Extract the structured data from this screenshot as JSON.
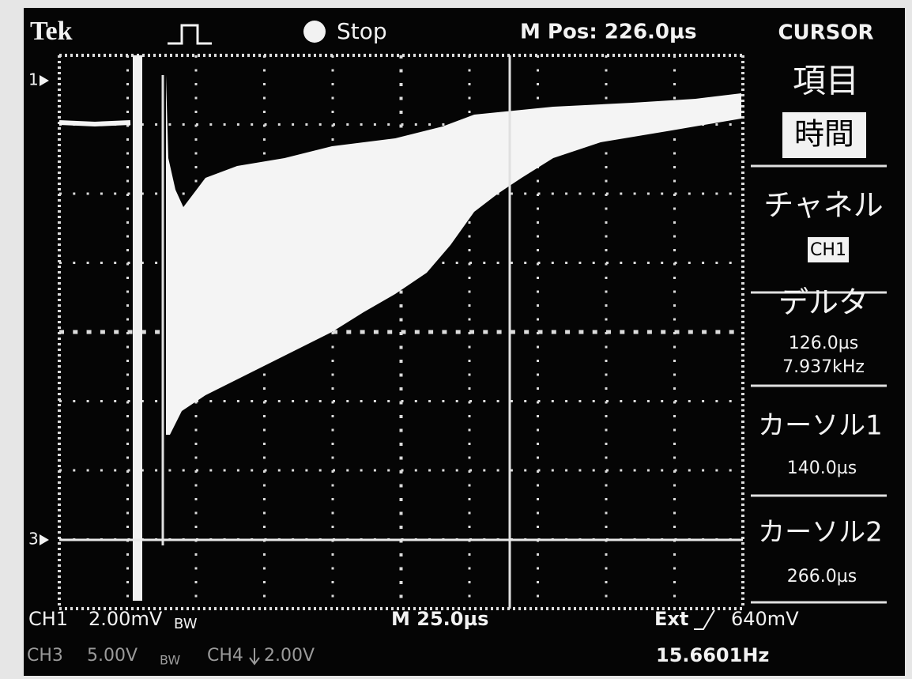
{
  "header": {
    "brand": "Tek",
    "status": "Stop",
    "position": "M Pos: 226.0µs"
  },
  "menu": {
    "title": "CURSOR",
    "items": [
      {
        "label": "項目",
        "value": "時間"
      },
      {
        "label": "チャネル",
        "value": "CH1"
      },
      {
        "label": "デルタ",
        "values": [
          "126.0µs",
          "7.937kHz"
        ]
      },
      {
        "label": "カーソル1",
        "values": [
          "140.0µs"
        ]
      },
      {
        "label": "カーソル2",
        "values": [
          "266.0µs"
        ]
      }
    ]
  },
  "markers": [
    "1",
    "3"
  ],
  "footer": {
    "ch1": "CH1",
    "ch1_scale": "2.00mV",
    "ch1_bw": "BW",
    "timebase": "M 25.0µs",
    "trigger_source": "Ext",
    "trigger_level": "640mV",
    "ch3": "CH3",
    "ch3_scale": "5.00V",
    "ch3_bw": "BW",
    "ch4": "CH4",
    "ch4_scale": "2.00V",
    "trigger_freq": "15.6601Hz"
  }
}
